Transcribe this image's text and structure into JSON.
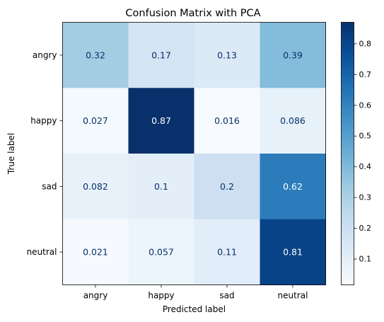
{
  "chart_data": {
    "type": "heatmap",
    "title": "Confusion Matrix with PCA",
    "xlabel": "Predicted label",
    "ylabel": "True label",
    "x_categories": [
      "angry",
      "happy",
      "sad",
      "neutral"
    ],
    "y_categories": [
      "angry",
      "happy",
      "sad",
      "neutral"
    ],
    "values": [
      [
        0.32,
        0.17,
        0.13,
        0.39
      ],
      [
        0.027,
        0.87,
        0.016,
        0.086
      ],
      [
        0.082,
        0.1,
        0.2,
        0.62
      ],
      [
        0.021,
        0.057,
        0.11,
        0.81
      ]
    ],
    "cell_labels": [
      [
        "0.32",
        "0.17",
        "0.13",
        "0.39"
      ],
      [
        "0.027",
        "0.87",
        "0.016",
        "0.086"
      ],
      [
        "0.082",
        "0.1",
        "0.2",
        "0.62"
      ],
      [
        "0.021",
        "0.057",
        "0.11",
        "0.81"
      ]
    ],
    "colormap": "Blues",
    "colorbar": {
      "range": [
        0.016,
        0.87
      ],
      "ticks": [
        0.1,
        0.2,
        0.3,
        0.4,
        0.5,
        0.6,
        0.7,
        0.8
      ],
      "tick_labels": [
        "0.1",
        "0.2",
        "0.3",
        "0.4",
        "0.5",
        "0.6",
        "0.7",
        "0.8"
      ]
    },
    "grid": false,
    "colors": {
      "dark_text": "#08306b",
      "light_text": "#ffffff"
    }
  }
}
